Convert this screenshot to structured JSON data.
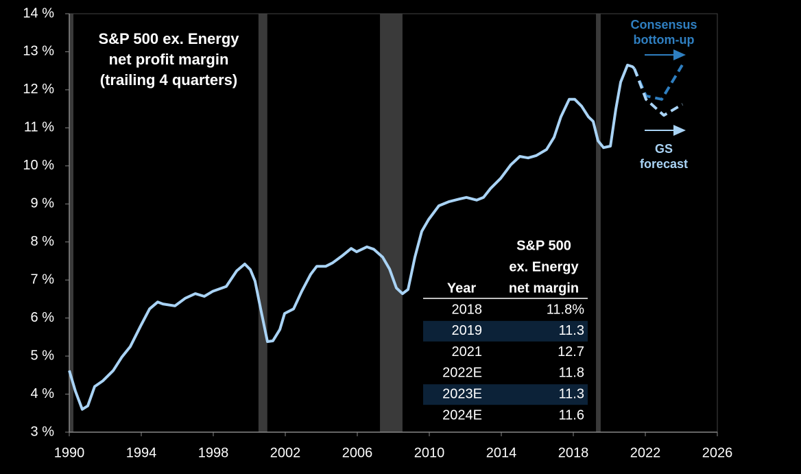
{
  "chart_data": {
    "type": "line",
    "title": [
      "S&P 500 ex. Energy",
      "net profit margin",
      "(trailing 4 quarters)"
    ],
    "xlim": [
      1990,
      2026
    ],
    "xticks": [
      1990,
      1994,
      1998,
      2002,
      2006,
      2010,
      2014,
      2018,
      2022,
      2026
    ],
    "ylim": [
      3,
      14
    ],
    "yticks": [
      {
        "value": 3,
        "label": "3 %"
      },
      {
        "value": 4,
        "label": "4 %"
      },
      {
        "value": 5,
        "label": "5 %"
      },
      {
        "value": 6,
        "label": "6 %"
      },
      {
        "value": 7,
        "label": "7 %"
      },
      {
        "value": 8,
        "label": "8 %"
      },
      {
        "value": 9,
        "label": "9 %"
      },
      {
        "value": 10,
        "label": "10 %"
      },
      {
        "value": 11,
        "label": "11 %"
      },
      {
        "value": 12,
        "label": "12 %"
      },
      {
        "value": 13,
        "label": "13 %"
      },
      {
        "value": 14,
        "label": "14 %"
      }
    ],
    "recessions": [
      [
        1990.0,
        1990.23
      ],
      [
        2000.51,
        2001.0
      ],
      [
        2007.26,
        2008.51
      ],
      [
        2019.26,
        2019.52
      ]
    ],
    "recession_color": "#3a3a3a",
    "series": [
      {
        "color": "#a9d3f5",
        "dashed": false,
        "x": [
          1990.0,
          1990.34,
          1990.72,
          1991.03,
          1991.41,
          1991.87,
          1992.44,
          1992.93,
          1993.39,
          1993.96,
          1994.46,
          1994.91,
          1995.2,
          1995.87,
          1996.44,
          1997.0,
          1997.5,
          1997.96,
          1998.72,
          1999.3,
          1999.75,
          2000.06,
          2000.32,
          2000.63,
          2001.01,
          2001.31,
          2001.7,
          2001.96,
          2002.46,
          2002.91,
          2003.41,
          2003.75,
          2004.25,
          2004.63,
          2005.2,
          2005.66,
          2005.96,
          2006.53,
          2006.91,
          2007.41,
          2007.79,
          2008.17,
          2008.51,
          2008.82,
          2009.2,
          2009.58,
          2009.96,
          2010.53,
          2011.1,
          2011.68,
          2012.06,
          2012.63,
          2013.01,
          2013.39,
          2013.96,
          2014.53,
          2015.03,
          2015.49,
          2015.94,
          2016.51,
          2016.93,
          2017.31,
          2017.77,
          2018.08,
          2018.46,
          2018.84,
          2019.1,
          2019.37,
          2019.68,
          2020.06,
          2020.36,
          2020.63,
          2021.01,
          2021.28,
          2021.39
        ],
        "values": [
          4.62,
          4.08,
          3.6,
          3.69,
          4.2,
          4.35,
          4.62,
          4.98,
          5.25,
          5.79,
          6.24,
          6.42,
          6.37,
          6.32,
          6.52,
          6.64,
          6.57,
          6.7,
          6.83,
          7.24,
          7.42,
          7.27,
          6.97,
          6.25,
          5.38,
          5.4,
          5.7,
          6.12,
          6.24,
          6.7,
          7.15,
          7.36,
          7.36,
          7.45,
          7.65,
          7.83,
          7.74,
          7.87,
          7.81,
          7.6,
          7.29,
          6.79,
          6.64,
          6.75,
          7.6,
          8.28,
          8.59,
          8.95,
          9.06,
          9.13,
          9.17,
          9.1,
          9.17,
          9.4,
          9.67,
          10.03,
          10.25,
          10.21,
          10.27,
          10.43,
          10.75,
          11.29,
          11.75,
          11.75,
          11.57,
          11.29,
          11.17,
          10.66,
          10.48,
          10.52,
          11.48,
          12.2,
          12.65,
          12.61,
          12.56
        ]
      },
      {
        "color": "#2f7fc1",
        "dashed": true,
        "label": [
          "Consensus",
          "bottom-up"
        ],
        "x": [
          2021.39,
          2022.04,
          2022.91,
          2024.05
        ],
        "values": [
          12.56,
          11.84,
          11.75,
          12.65
        ]
      },
      {
        "color": "#a9d3f5",
        "dashed": true,
        "label": [
          "GS",
          "forecast"
        ],
        "x": [
          2021.39,
          2022.04,
          2023.03,
          2024.06
        ],
        "values": [
          12.56,
          11.75,
          11.33,
          11.62
        ]
      }
    ]
  },
  "table": {
    "header": [
      [
        "Year"
      ],
      [
        "S&P 500",
        "ex. Energy",
        "net margin"
      ]
    ],
    "rows": [
      [
        "2018",
        "11.8%"
      ],
      [
        "2019",
        "11.3"
      ],
      [
        "2021",
        "12.7"
      ],
      [
        "2022E",
        "11.8"
      ],
      [
        "2023E",
        "11.3"
      ],
      [
        "2024E",
        "11.6"
      ]
    ],
    "highlight_rows": [
      1,
      4
    ],
    "highlight_color": "#0c2238"
  }
}
